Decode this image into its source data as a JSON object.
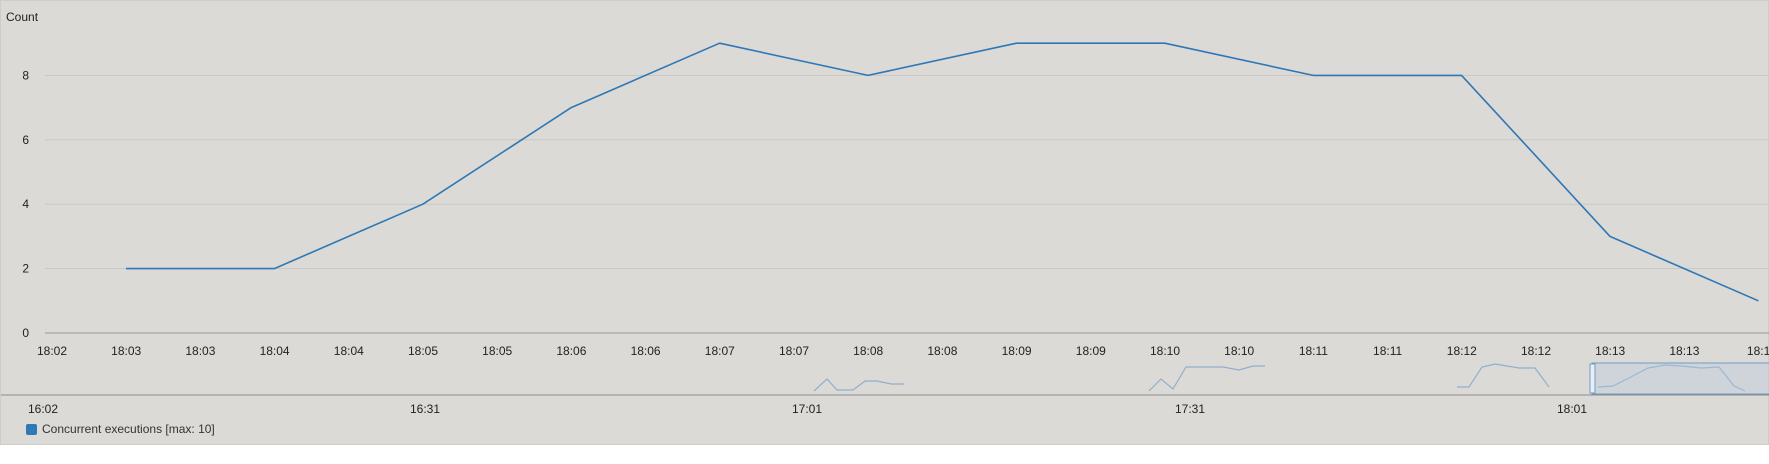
{
  "chart_data": {
    "type": "line",
    "ylabel": "Count",
    "ylim": [
      0,
      10
    ],
    "yticks": [
      0,
      2,
      4,
      6,
      8
    ],
    "grid": true,
    "x_tick_labels": [
      "18:02",
      "18:03",
      "18:03",
      "18:04",
      "18:04",
      "18:05",
      "18:05",
      "18:06",
      "18:06",
      "18:07",
      "18:07",
      "18:08",
      "18:08",
      "18:09",
      "18:09",
      "18:10",
      "18:10",
      "18:11",
      "18:11",
      "18:12",
      "18:12",
      "18:13",
      "18:13",
      "18:1"
    ],
    "series": [
      {
        "name": "Concurrent executions [max: 10]",
        "color": "#2e78b5",
        "x": [
          "18:03",
          "18:04",
          "18:05",
          "18:06",
          "18:07",
          "18:08",
          "18:09",
          "18:10",
          "18:11",
          "18:12",
          "18:13",
          "18:14"
        ],
        "values": [
          2,
          2,
          4,
          7,
          9,
          8,
          9,
          9,
          8,
          8,
          3,
          1
        ]
      }
    ],
    "navigator": {
      "x_labels": [
        "16:02",
        "16:31",
        "17:01",
        "17:31",
        "18:01"
      ],
      "series_color": "#8fb0cc"
    }
  }
}
